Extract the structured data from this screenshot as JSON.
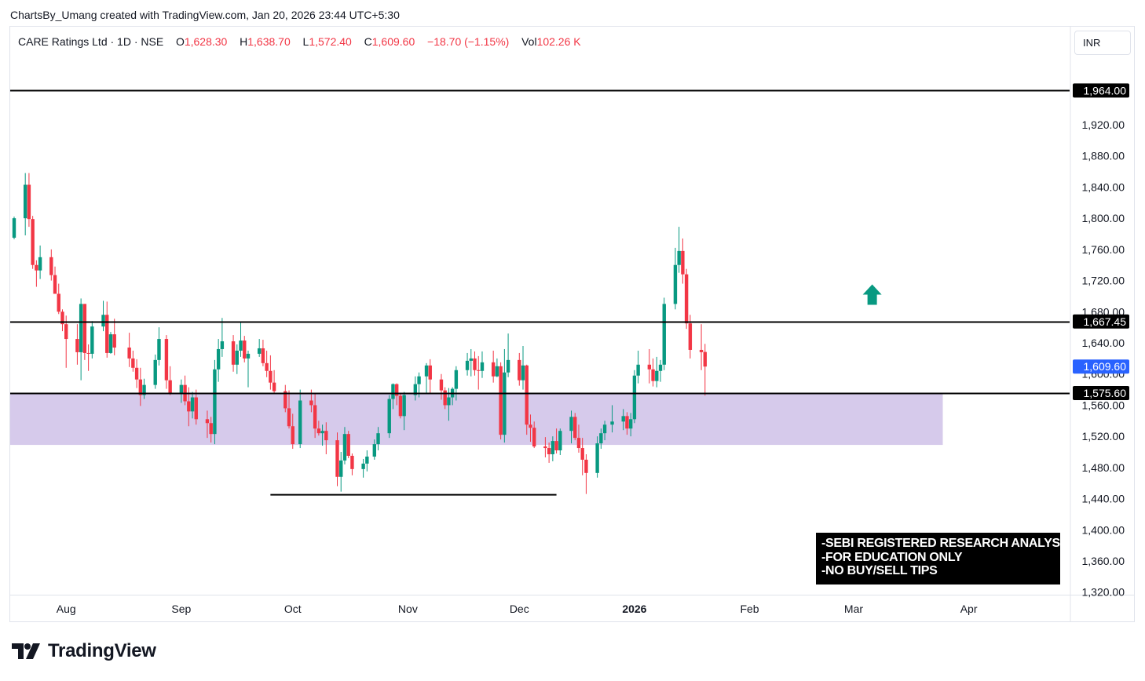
{
  "caption": "ChartsBy_Umang created with TradingView.com, Jan 20, 2026 23:44 UTC+5:30",
  "legend": {
    "symbol": "CARE Ratings Ltd · 1D · NSE",
    "open_key": "O",
    "open": "1,628.30",
    "high_key": "H",
    "high": "1,638.70",
    "low_key": "L",
    "low": "1,572.40",
    "close_key": "C",
    "close": "1,609.60",
    "change": "−18.70 (−1.15%)",
    "vol_key": "Vol",
    "vol": "102.26 K"
  },
  "currency": "INR",
  "brand": "TradingView",
  "disclaimer": [
    "-SEBI REGISTERED RESEARCH ANALYST",
    "-FOR EDUCATION ONLY",
    "-NO BUY/SELL TIPS"
  ],
  "chart_data": {
    "type": "candlestick",
    "y_axis": {
      "ticks": [
        1320,
        1360,
        1400,
        1440,
        1480,
        1520,
        1560,
        1600,
        1640,
        1680,
        1720,
        1760,
        1800,
        1840,
        1880,
        1920
      ],
      "tick_labels": [
        "1,320.00",
        "1,360.00",
        "1,400.00",
        "1,440.00",
        "1,480.00",
        "1,520.00",
        "1,560.00",
        "1,600.00",
        "1,640.00",
        "1,680.00",
        "1,720.00",
        "1,760.00",
        "1,800.00",
        "1,840.00",
        "1,880.00",
        "1,920.00"
      ],
      "range": [
        1290,
        1985
      ]
    },
    "x_axis": {
      "labels": [
        {
          "date": "2025-08-01",
          "text": "Aug",
          "bold": false
        },
        {
          "date": "2025-09-01",
          "text": "Sep",
          "bold": false
        },
        {
          "date": "2025-10-01",
          "text": "Oct",
          "bold": false
        },
        {
          "date": "2025-11-01",
          "text": "Nov",
          "bold": false
        },
        {
          "date": "2025-12-01",
          "text": "Dec",
          "bold": false
        },
        {
          "date": "2026-01-01",
          "text": "2026",
          "bold": true
        },
        {
          "date": "2026-02-01",
          "text": "Feb",
          "bold": false
        },
        {
          "date": "2026-03-01",
          "text": "Mar",
          "bold": false
        },
        {
          "date": "2026-04-01",
          "text": "Apr",
          "bold": false
        }
      ]
    },
    "horizontal_levels": [
      {
        "value": 1964.0,
        "label": "1,964.00",
        "color": "#000000"
      },
      {
        "value": 1667.45,
        "label": "1,667.45",
        "color": "#000000"
      },
      {
        "value": 1575.6,
        "label": "1,575.60",
        "color": "#000000"
      }
    ],
    "last_price": {
      "value": 1609.6,
      "label": "1,609.60",
      "color": "#2962ff"
    },
    "zone": {
      "top": 1575.6,
      "bottom": 1509,
      "from": "2025-07-18",
      "to": "2026-03-25",
      "color": "#d1c4e9"
    },
    "support_segment": {
      "value": 1445,
      "from": "2025-09-25",
      "to": "2025-12-11"
    },
    "arrow": {
      "date": "2026-03-06",
      "value": 1702,
      "direction": "up",
      "color": "#089981"
    },
    "up_color": "#089981",
    "down_color": "#f23645",
    "candles": [
      {
        "d": "2025-07-18",
        "o": 1775,
        "h": 1802,
        "l": 1773,
        "c": 1800
      },
      {
        "d": "2025-07-21",
        "o": 1800,
        "h": 1858,
        "l": 1778,
        "c": 1843
      },
      {
        "d": "2025-07-22",
        "o": 1843,
        "h": 1858,
        "l": 1789,
        "c": 1799
      },
      {
        "d": "2025-07-23",
        "o": 1799,
        "h": 1803,
        "l": 1735,
        "c": 1740
      },
      {
        "d": "2025-07-24",
        "o": 1740,
        "h": 1746,
        "l": 1712,
        "c": 1733
      },
      {
        "d": "2025-07-25",
        "o": 1733,
        "h": 1765,
        "l": 1722,
        "c": 1750
      },
      {
        "d": "2025-07-28",
        "o": 1750,
        "h": 1760,
        "l": 1720,
        "c": 1727
      },
      {
        "d": "2025-07-29",
        "o": 1727,
        "h": 1738,
        "l": 1703,
        "c": 1703
      },
      {
        "d": "2025-07-30",
        "o": 1703,
        "h": 1716,
        "l": 1677,
        "c": 1680
      },
      {
        "d": "2025-07-31",
        "o": 1680,
        "h": 1683,
        "l": 1655,
        "c": 1664
      },
      {
        "d": "2025-08-01",
        "o": 1664,
        "h": 1675,
        "l": 1608,
        "c": 1645
      },
      {
        "d": "2025-08-04",
        "o": 1645,
        "h": 1664,
        "l": 1612,
        "c": 1628
      },
      {
        "d": "2025-08-05",
        "o": 1628,
        "h": 1697,
        "l": 1592,
        "c": 1690
      },
      {
        "d": "2025-08-06",
        "o": 1690,
        "h": 1690,
        "l": 1618,
        "c": 1627
      },
      {
        "d": "2025-08-07",
        "o": 1627,
        "h": 1638,
        "l": 1604,
        "c": 1626
      },
      {
        "d": "2025-08-08",
        "o": 1626,
        "h": 1668,
        "l": 1620,
        "c": 1661
      },
      {
        "d": "2025-08-11",
        "o": 1661,
        "h": 1694,
        "l": 1655,
        "c": 1676
      },
      {
        "d": "2025-08-12",
        "o": 1676,
        "h": 1693,
        "l": 1621,
        "c": 1627
      },
      {
        "d": "2025-08-13",
        "o": 1627,
        "h": 1654,
        "l": 1626,
        "c": 1651
      },
      {
        "d": "2025-08-14",
        "o": 1651,
        "h": 1671,
        "l": 1624,
        "c": 1634
      },
      {
        "d": "2025-08-18",
        "o": 1634,
        "h": 1653,
        "l": 1609,
        "c": 1620
      },
      {
        "d": "2025-08-19",
        "o": 1620,
        "h": 1630,
        "l": 1603,
        "c": 1608
      },
      {
        "d": "2025-08-20",
        "o": 1608,
        "h": 1619,
        "l": 1582,
        "c": 1593
      },
      {
        "d": "2025-08-21",
        "o": 1593,
        "h": 1608,
        "l": 1559,
        "c": 1573
      },
      {
        "d": "2025-08-22",
        "o": 1573,
        "h": 1594,
        "l": 1568,
        "c": 1586
      },
      {
        "d": "2025-08-25",
        "o": 1586,
        "h": 1625,
        "l": 1581,
        "c": 1618
      },
      {
        "d": "2025-08-26",
        "o": 1618,
        "h": 1660,
        "l": 1611,
        "c": 1645
      },
      {
        "d": "2025-08-28",
        "o": 1645,
        "h": 1650,
        "l": 1581,
        "c": 1592
      },
      {
        "d": "2025-08-29",
        "o": 1592,
        "h": 1610,
        "l": 1573,
        "c": 1576
      },
      {
        "d": "2025-09-01",
        "o": 1576,
        "h": 1593,
        "l": 1563,
        "c": 1586
      },
      {
        "d": "2025-09-02",
        "o": 1586,
        "h": 1598,
        "l": 1560,
        "c": 1565
      },
      {
        "d": "2025-09-03",
        "o": 1565,
        "h": 1583,
        "l": 1533,
        "c": 1552
      },
      {
        "d": "2025-09-04",
        "o": 1552,
        "h": 1577,
        "l": 1543,
        "c": 1570
      },
      {
        "d": "2025-09-05",
        "o": 1570,
        "h": 1580,
        "l": 1535,
        "c": 1542
      },
      {
        "d": "2025-09-08",
        "o": 1542,
        "h": 1553,
        "l": 1518,
        "c": 1537
      },
      {
        "d": "2025-09-09",
        "o": 1537,
        "h": 1545,
        "l": 1512,
        "c": 1523
      },
      {
        "d": "2025-09-10",
        "o": 1523,
        "h": 1618,
        "l": 1510,
        "c": 1606
      },
      {
        "d": "2025-09-11",
        "o": 1606,
        "h": 1645,
        "l": 1590,
        "c": 1632
      },
      {
        "d": "2025-09-12",
        "o": 1632,
        "h": 1672,
        "l": 1622,
        "c": 1642
      },
      {
        "d": "2025-09-15",
        "o": 1642,
        "h": 1650,
        "l": 1603,
        "c": 1612
      },
      {
        "d": "2025-09-16",
        "o": 1612,
        "h": 1638,
        "l": 1600,
        "c": 1630
      },
      {
        "d": "2025-09-17",
        "o": 1630,
        "h": 1666,
        "l": 1622,
        "c": 1643
      },
      {
        "d": "2025-09-18",
        "o": 1643,
        "h": 1649,
        "l": 1615,
        "c": 1620
      },
      {
        "d": "2025-09-19",
        "o": 1620,
        "h": 1630,
        "l": 1583,
        "c": 1626
      },
      {
        "d": "2025-09-22",
        "o": 1626,
        "h": 1645,
        "l": 1622,
        "c": 1633
      },
      {
        "d": "2025-09-23",
        "o": 1633,
        "h": 1644,
        "l": 1610,
        "c": 1614
      },
      {
        "d": "2025-09-24",
        "o": 1614,
        "h": 1630,
        "l": 1596,
        "c": 1604
      },
      {
        "d": "2025-09-25",
        "o": 1604,
        "h": 1624,
        "l": 1580,
        "c": 1589
      },
      {
        "d": "2025-09-26",
        "o": 1589,
        "h": 1605,
        "l": 1575,
        "c": 1578
      },
      {
        "d": "2025-09-29",
        "o": 1578,
        "h": 1586,
        "l": 1551,
        "c": 1556
      },
      {
        "d": "2025-09-30",
        "o": 1556,
        "h": 1579,
        "l": 1530,
        "c": 1533
      },
      {
        "d": "2025-10-01",
        "o": 1533,
        "h": 1549,
        "l": 1504,
        "c": 1510
      },
      {
        "d": "2025-10-03",
        "o": 1510,
        "h": 1580,
        "l": 1505,
        "c": 1566
      },
      {
        "d": "2025-10-06",
        "o": 1566,
        "h": 1580,
        "l": 1551,
        "c": 1560
      },
      {
        "d": "2025-10-07",
        "o": 1560,
        "h": 1575,
        "l": 1518,
        "c": 1530
      },
      {
        "d": "2025-10-08",
        "o": 1530,
        "h": 1540,
        "l": 1521,
        "c": 1524
      },
      {
        "d": "2025-10-09",
        "o": 1524,
        "h": 1535,
        "l": 1508,
        "c": 1527
      },
      {
        "d": "2025-10-10",
        "o": 1527,
        "h": 1538,
        "l": 1497,
        "c": 1515
      },
      {
        "d": "2025-10-13",
        "o": 1515,
        "h": 1525,
        "l": 1456,
        "c": 1468
      },
      {
        "d": "2025-10-14",
        "o": 1468,
        "h": 1500,
        "l": 1449,
        "c": 1489
      },
      {
        "d": "2025-10-15",
        "o": 1489,
        "h": 1532,
        "l": 1484,
        "c": 1523
      },
      {
        "d": "2025-10-16",
        "o": 1523,
        "h": 1527,
        "l": 1492,
        "c": 1495
      },
      {
        "d": "2025-10-17",
        "o": 1495,
        "h": 1498,
        "l": 1470,
        "c": 1478
      },
      {
        "d": "2025-10-20",
        "o": 1478,
        "h": 1491,
        "l": 1467,
        "c": 1485
      },
      {
        "d": "2025-10-21",
        "o": 1485,
        "h": 1502,
        "l": 1475,
        "c": 1494
      },
      {
        "d": "2025-10-23",
        "o": 1494,
        "h": 1516,
        "l": 1490,
        "c": 1510
      },
      {
        "d": "2025-10-24",
        "o": 1510,
        "h": 1532,
        "l": 1502,
        "c": 1524
      },
      {
        "d": "2025-10-27",
        "o": 1524,
        "h": 1573,
        "l": 1518,
        "c": 1568
      },
      {
        "d": "2025-10-28",
        "o": 1568,
        "h": 1588,
        "l": 1555,
        "c": 1587
      },
      {
        "d": "2025-10-29",
        "o": 1587,
        "h": 1588,
        "l": 1560,
        "c": 1572
      },
      {
        "d": "2025-10-30",
        "o": 1572,
        "h": 1576,
        "l": 1543,
        "c": 1546
      },
      {
        "d": "2025-10-31",
        "o": 1546,
        "h": 1577,
        "l": 1528,
        "c": 1573
      },
      {
        "d": "2025-11-03",
        "o": 1573,
        "h": 1597,
        "l": 1566,
        "c": 1587
      },
      {
        "d": "2025-11-04",
        "o": 1587,
        "h": 1602,
        "l": 1570,
        "c": 1597
      },
      {
        "d": "2025-11-06",
        "o": 1597,
        "h": 1614,
        "l": 1575,
        "c": 1611
      },
      {
        "d": "2025-11-07",
        "o": 1611,
        "h": 1619,
        "l": 1576,
        "c": 1593
      },
      {
        "d": "2025-11-10",
        "o": 1593,
        "h": 1600,
        "l": 1567,
        "c": 1579
      },
      {
        "d": "2025-11-11",
        "o": 1579,
        "h": 1583,
        "l": 1555,
        "c": 1560
      },
      {
        "d": "2025-11-12",
        "o": 1560,
        "h": 1582,
        "l": 1540,
        "c": 1570
      },
      {
        "d": "2025-11-13",
        "o": 1570,
        "h": 1583,
        "l": 1560,
        "c": 1581
      },
      {
        "d": "2025-11-14",
        "o": 1581,
        "h": 1610,
        "l": 1566,
        "c": 1605
      },
      {
        "d": "2025-11-17",
        "o": 1605,
        "h": 1627,
        "l": 1598,
        "c": 1617
      },
      {
        "d": "2025-11-18",
        "o": 1617,
        "h": 1632,
        "l": 1597,
        "c": 1620
      },
      {
        "d": "2025-11-19",
        "o": 1620,
        "h": 1629,
        "l": 1598,
        "c": 1605
      },
      {
        "d": "2025-11-20",
        "o": 1605,
        "h": 1623,
        "l": 1580,
        "c": 1604
      },
      {
        "d": "2025-11-21",
        "o": 1604,
        "h": 1629,
        "l": 1595,
        "c": 1615
      },
      {
        "d": "2025-11-24",
        "o": 1615,
        "h": 1630,
        "l": 1589,
        "c": 1597
      },
      {
        "d": "2025-11-25",
        "o": 1597,
        "h": 1620,
        "l": 1596,
        "c": 1610
      },
      {
        "d": "2025-11-26",
        "o": 1610,
        "h": 1615,
        "l": 1516,
        "c": 1522
      },
      {
        "d": "2025-11-27",
        "o": 1522,
        "h": 1632,
        "l": 1512,
        "c": 1602
      },
      {
        "d": "2025-11-28",
        "o": 1602,
        "h": 1652,
        "l": 1596,
        "c": 1618
      },
      {
        "d": "2025-12-01",
        "o": 1618,
        "h": 1627,
        "l": 1585,
        "c": 1592
      },
      {
        "d": "2025-12-02",
        "o": 1592,
        "h": 1636,
        "l": 1580,
        "c": 1611
      },
      {
        "d": "2025-12-03",
        "o": 1611,
        "h": 1612,
        "l": 1522,
        "c": 1535
      },
      {
        "d": "2025-12-04",
        "o": 1535,
        "h": 1548,
        "l": 1513,
        "c": 1531
      },
      {
        "d": "2025-12-05",
        "o": 1531,
        "h": 1539,
        "l": 1505,
        "c": 1507
      },
      {
        "d": "2025-12-08",
        "o": 1507,
        "h": 1519,
        "l": 1493,
        "c": 1505
      },
      {
        "d": "2025-12-09",
        "o": 1505,
        "h": 1512,
        "l": 1486,
        "c": 1497
      },
      {
        "d": "2025-12-10",
        "o": 1497,
        "h": 1520,
        "l": 1488,
        "c": 1514
      },
      {
        "d": "2025-12-11",
        "o": 1514,
        "h": 1530,
        "l": 1498,
        "c": 1502
      },
      {
        "d": "2025-12-12",
        "o": 1502,
        "h": 1530,
        "l": 1496,
        "c": 1527
      },
      {
        "d": "2025-12-15",
        "o": 1527,
        "h": 1553,
        "l": 1511,
        "c": 1545
      },
      {
        "d": "2025-12-16",
        "o": 1545,
        "h": 1550,
        "l": 1515,
        "c": 1518
      },
      {
        "d": "2025-12-17",
        "o": 1518,
        "h": 1535,
        "l": 1499,
        "c": 1505
      },
      {
        "d": "2025-12-18",
        "o": 1505,
        "h": 1518,
        "l": 1470,
        "c": 1490
      },
      {
        "d": "2025-12-19",
        "o": 1490,
        "h": 1497,
        "l": 1446,
        "c": 1473
      },
      {
        "d": "2025-12-22",
        "o": 1473,
        "h": 1520,
        "l": 1467,
        "c": 1511
      },
      {
        "d": "2025-12-23",
        "o": 1511,
        "h": 1530,
        "l": 1504,
        "c": 1524
      },
      {
        "d": "2025-12-24",
        "o": 1524,
        "h": 1540,
        "l": 1515,
        "c": 1535
      },
      {
        "d": "2025-12-26",
        "o": 1535,
        "h": 1560,
        "l": 1525,
        "c": 1539
      },
      {
        "d": "2025-12-29",
        "o": 1539,
        "h": 1555,
        "l": 1528,
        "c": 1546
      },
      {
        "d": "2025-12-30",
        "o": 1546,
        "h": 1551,
        "l": 1522,
        "c": 1530
      },
      {
        "d": "2025-12-31",
        "o": 1530,
        "h": 1550,
        "l": 1520,
        "c": 1542
      },
      {
        "d": "2026-01-01",
        "o": 1542,
        "h": 1605,
        "l": 1537,
        "c": 1598
      },
      {
        "d": "2026-01-02",
        "o": 1598,
        "h": 1630,
        "l": 1588,
        "c": 1612
      },
      {
        "d": "2026-01-05",
        "o": 1612,
        "h": 1632,
        "l": 1588,
        "c": 1606
      },
      {
        "d": "2026-01-06",
        "o": 1606,
        "h": 1620,
        "l": 1584,
        "c": 1591
      },
      {
        "d": "2026-01-07",
        "o": 1591,
        "h": 1622,
        "l": 1583,
        "c": 1604
      },
      {
        "d": "2026-01-08",
        "o": 1604,
        "h": 1618,
        "l": 1590,
        "c": 1612
      },
      {
        "d": "2026-01-09",
        "o": 1612,
        "h": 1698,
        "l": 1605,
        "c": 1690
      },
      {
        "d": "2026-01-12",
        "o": 1690,
        "h": 1762,
        "l": 1683,
        "c": 1740
      },
      {
        "d": "2026-01-13",
        "o": 1740,
        "h": 1789,
        "l": 1730,
        "c": 1758
      },
      {
        "d": "2026-01-14",
        "o": 1758,
        "h": 1774,
        "l": 1716,
        "c": 1728
      },
      {
        "d": "2026-01-15",
        "o": 1728,
        "h": 1735,
        "l": 1658,
        "c": 1665
      },
      {
        "d": "2026-01-16",
        "o": 1665,
        "h": 1676,
        "l": 1620,
        "c": 1631
      },
      {
        "d": "2026-01-19",
        "o": 1631,
        "h": 1664,
        "l": 1605,
        "c": 1628
      },
      {
        "d": "2026-01-20",
        "o": 1628.3,
        "h": 1638.7,
        "l": 1572.4,
        "c": 1609.6
      }
    ]
  }
}
